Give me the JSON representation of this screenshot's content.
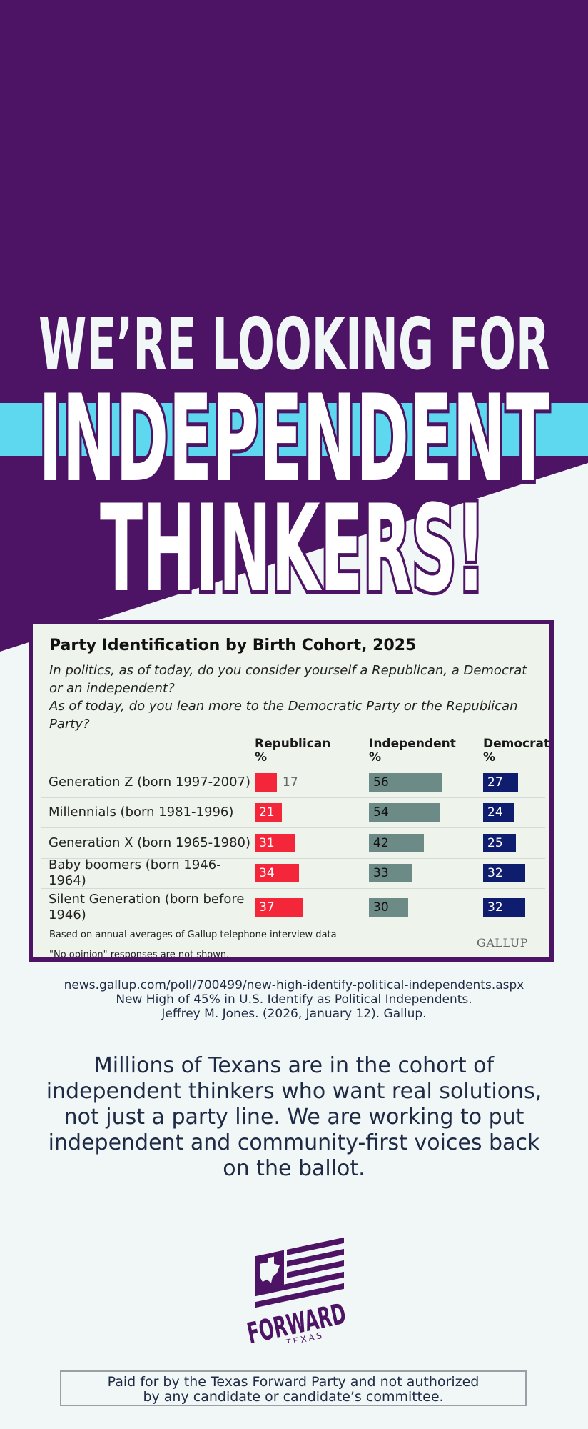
{
  "colors": {
    "purple": "#4d1364",
    "cyan": "#5dd8ee",
    "background": "#f1f7f6",
    "republican": "#f4263a",
    "independent": "#6c8a86",
    "democrat": "#0f1d6e"
  },
  "headline": {
    "line1": "WE’RE LOOKING FOR",
    "line2": "INDEPENDENT",
    "line3": "THINKERS!"
  },
  "chart_data": {
    "type": "bar",
    "title": "Party Identification by Birth Cohort, 2025",
    "question_1": "In politics, as of today, do you consider yourself a Republican, a Democrat or an independent?",
    "question_2": "As of today, do you lean more to the Democratic Party or the Republican Party?",
    "categories": [
      "Generation Z (born 1997-2007)",
      "Millennials (born 1981-1996)",
      "Generation X (born 1965-1980)",
      "Baby boomers (born 1946-1964)",
      "Silent Generation (born before 1946)"
    ],
    "series": [
      {
        "name": "Republican %",
        "values": [
          17,
          21,
          31,
          34,
          37
        ]
      },
      {
        "name": "Independent %",
        "values": [
          56,
          54,
          42,
          33,
          30
        ]
      },
      {
        "name": "Democrat %",
        "values": [
          27,
          24,
          25,
          32,
          32
        ]
      }
    ],
    "notes": [
      "Based on annual averages of Gallup telephone interview data",
      "\"No opinion\" responses are not shown."
    ],
    "brand": "GALLUP"
  },
  "source": {
    "url": "news.gallup.com/poll/700499/new-high-identify-political-independents.aspx",
    "title": "New High of 45% in U.S. Identify as Political Independents.",
    "citation": "Jeffrey M. Jones. (2026, January 12). Gallup."
  },
  "body_text": "Millions of Texans are in the cohort of independent thinkers who want real solutions, not just a party line. We are working to put independent and community-first voices back on the ballot.",
  "logo": {
    "word": "FORWARD",
    "sub": "TEXAS",
    "icon": "texas-flag-icon"
  },
  "disclaimer": {
    "line1": "Paid for by the Texas Forward Party and not authorized",
    "line2": "by any candidate or candidate’s committee."
  }
}
